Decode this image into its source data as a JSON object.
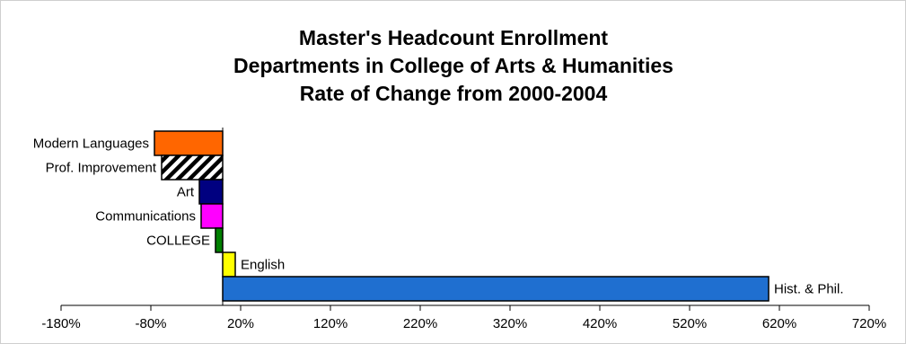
{
  "chart_data": {
    "type": "bar",
    "orientation": "horizontal",
    "title": [
      "Master's Headcount Enrollment",
      "Departments in College of Arts & Humanities",
      "Rate of Change from 2000-2004"
    ],
    "categories": [
      "Modern Languages",
      "Prof. Improvement",
      "Art",
      "Communications",
      "COLLEGE",
      "English",
      "Hist. & Phil."
    ],
    "values": [
      -76,
      -68,
      -26,
      -24,
      -8,
      14,
      608
    ],
    "colors": [
      "#FF6600",
      "hatch",
      "#000080",
      "#FF00FF",
      "#008000",
      "#FFFF00",
      "#1F6FD0"
    ],
    "xlim": [
      -180,
      720
    ],
    "xticks": [
      -180,
      -80,
      20,
      120,
      220,
      320,
      420,
      520,
      620,
      720
    ],
    "xtick_labels": [
      "-180%",
      "-80%",
      "20%",
      "120%",
      "220%",
      "320%",
      "420%",
      "520%",
      "620%",
      "720%"
    ],
    "xlabel": "",
    "ylabel": "",
    "grid": false,
    "legend": "none"
  }
}
